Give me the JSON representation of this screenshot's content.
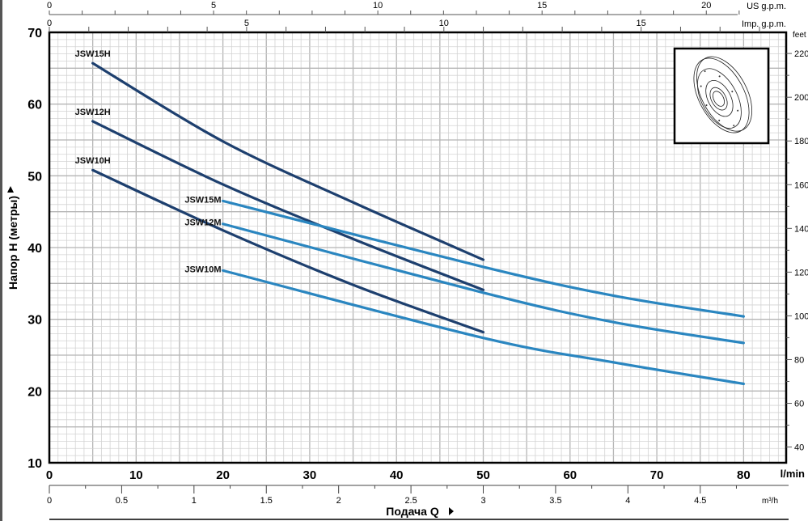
{
  "chart_data": {
    "type": "line",
    "title": "",
    "xlabel": "Подача Q",
    "ylabel": "Напор H (метры)",
    "x_unit": "l/min",
    "xlim": [
      0,
      85
    ],
    "ylim": [
      10,
      70
    ],
    "grid": true,
    "x_ticks": [
      0,
      10,
      20,
      30,
      40,
      50,
      60,
      70,
      80
    ],
    "y_ticks": [
      10,
      20,
      30,
      40,
      50,
      60,
      70
    ],
    "secondary_axes": {
      "top_us_gpm": {
        "label": "US g.p.m.",
        "ticks": [
          0,
          5,
          10,
          15,
          20
        ]
      },
      "top_imp_gpm": {
        "label": "Imp. g.p.m.",
        "ticks": [
          0,
          5,
          10,
          15
        ]
      },
      "bottom_m3h": {
        "label": "m³/h",
        "ticks": [
          0,
          0.5,
          1,
          1.5,
          2,
          2.5,
          3,
          3.5,
          4,
          4.5
        ]
      },
      "right_feet": {
        "label": "feet",
        "ticks": [
          40,
          60,
          80,
          100,
          120,
          140,
          160,
          180,
          200,
          220
        ]
      }
    },
    "series": [
      {
        "name": "JSW15H",
        "color": "#1d3f6e",
        "x": [
          5,
          20,
          35,
          50
        ],
        "y": [
          65.7,
          54.8,
          46.3,
          38.3
        ]
      },
      {
        "name": "JSW12H",
        "color": "#1d3f6e",
        "x": [
          5,
          20,
          35,
          50
        ],
        "y": [
          57.6,
          48.8,
          41.2,
          34.1
        ]
      },
      {
        "name": "JSW10H",
        "color": "#1d3f6e",
        "x": [
          5,
          20,
          35,
          50
        ],
        "y": [
          50.8,
          42.4,
          34.8,
          28.2
        ]
      },
      {
        "name": "JSW15M",
        "color": "#2a86c0",
        "x": [
          20,
          50,
          65,
          80
        ],
        "y": [
          46.5,
          37.3,
          33.3,
          30.4
        ]
      },
      {
        "name": "JSW12M",
        "color": "#2a86c0",
        "x": [
          20,
          50,
          65,
          80
        ],
        "y": [
          43.3,
          33.7,
          29.6,
          26.7
        ]
      },
      {
        "name": "JSW10M",
        "color": "#2a86c0",
        "x": [
          20,
          50,
          65,
          80
        ],
        "y": [
          36.8,
          27.4,
          24.0,
          21.0
        ]
      }
    ],
    "inset_image": "impeller-drawing"
  }
}
